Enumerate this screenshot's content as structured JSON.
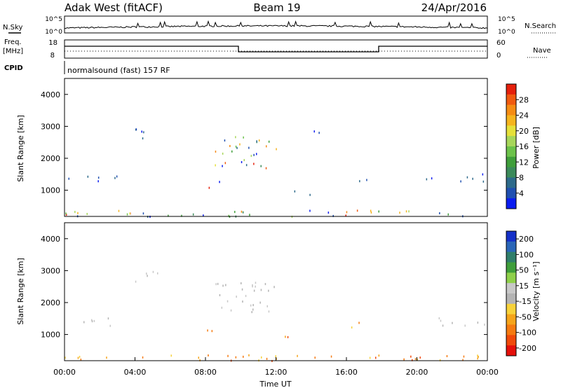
{
  "header": {
    "station": "Adak West (fitACF)",
    "beam": "Beam 19",
    "date": "24/Apr/2016"
  },
  "left_labels": {
    "nsky": "N.Sky",
    "freq": "Freq.",
    "mhz": "[MHz]",
    "cpid": "CPID"
  },
  "right_labels": {
    "nsearch": "N.Search",
    "nave": "Nave"
  },
  "top_panel": {
    "y_ticks_left": [
      "10^5",
      "10^0"
    ],
    "y_ticks_right": [
      "10^5",
      "10^0"
    ]
  },
  "freq_panel": {
    "y_ticks_left": [
      "18",
      "8"
    ],
    "y_ticks_right": [
      "60",
      "0"
    ]
  },
  "cpid_text": "normalsound (fast) 157 RF",
  "chart_data": [
    {
      "type": "heatmap",
      "name": "power",
      "ylabel": "Slant Range [km]",
      "x_ticks": [
        "00:00",
        "04:00",
        "08:00",
        "12:00",
        "16:00",
        "20:00",
        "00:00"
      ],
      "y_ticks": [
        "1000",
        "2000",
        "3000",
        "4000"
      ],
      "ylim": [
        180,
        4500
      ],
      "xlim_hours": [
        0,
        24
      ],
      "colorbar": {
        "label": "Power [dB]",
        "ticks": [
          "4",
          "8",
          "12",
          "16",
          "20",
          "24",
          "28"
        ],
        "range": [
          0,
          30
        ],
        "colors": [
          "#0a1cf0",
          "#1f4fb0",
          "#2d6a8a",
          "#3b8a5a",
          "#3f9e3a",
          "#6cc24a",
          "#a7d65a",
          "#e5e03a",
          "#f5b41e",
          "#f58c14",
          "#f05a10",
          "#e5200c"
        ]
      },
      "scatter_regions": [
        {
          "t": [
            0,
            3
          ],
          "r": [
            1300,
            1550
          ],
          "level": "low"
        },
        {
          "t": [
            4,
            5.5
          ],
          "r": [
            2600,
            3000
          ],
          "level": "low"
        },
        {
          "t": [
            8,
            9
          ],
          "r": [
            1100,
            1300
          ],
          "level": "mixed"
        },
        {
          "t": [
            8.5,
            12
          ],
          "r": [
            1700,
            2700
          ],
          "level": "mixed"
        },
        {
          "t": [
            12.5,
            14
          ],
          "r": [
            850,
            1000
          ],
          "level": "low"
        },
        {
          "t": [
            13.5,
            14.5
          ],
          "r": [
            2650,
            2900
          ],
          "level": "low"
        },
        {
          "t": [
            16,
            17.5
          ],
          "r": [
            1250,
            1400
          ],
          "level": "low"
        },
        {
          "t": [
            20.5,
            24
          ],
          "r": [
            1300,
            1550
          ],
          "level": "low"
        },
        {
          "t": [
            0,
            24
          ],
          "r": [
            200,
            400
          ],
          "level": "mixed"
        }
      ]
    },
    {
      "type": "heatmap",
      "name": "velocity",
      "ylabel": "Slant Range [km]",
      "xlabel": "Time UT",
      "x_ticks": [
        "00:00",
        "04:00",
        "08:00",
        "12:00",
        "16:00",
        "20:00",
        "00:00"
      ],
      "y_ticks": [
        "1000",
        "2000",
        "3000",
        "4000"
      ],
      "ylim": [
        180,
        4500
      ],
      "xlim_hours": [
        0,
        24
      ],
      "colorbar": {
        "label": "Velocity [m s⁻¹]",
        "ticks": [
          "200",
          "100",
          "50",
          "15",
          "-15",
          "-50",
          "-100",
          "-200"
        ],
        "colors": [
          "#1530c8",
          "#2a66b8",
          "#2f7e6a",
          "#3f9e3a",
          "#8fd04a",
          "#c8c8c8",
          "#b4b4b4",
          "#f7d23a",
          "#f5a41a",
          "#f57a10",
          "#f04a0a",
          "#e5100a"
        ]
      },
      "scatter_regions": [
        {
          "t": [
            0,
            3
          ],
          "r": [
            1300,
            1550
          ],
          "level": "gray"
        },
        {
          "t": [
            4,
            5.5
          ],
          "r": [
            2600,
            3000
          ],
          "level": "gray"
        },
        {
          "t": [
            8,
            9
          ],
          "r": [
            1100,
            1300
          ],
          "level": "warm"
        },
        {
          "t": [
            8.5,
            12
          ],
          "r": [
            1700,
            2700
          ],
          "level": "gray"
        },
        {
          "t": [
            12.5,
            14
          ],
          "r": [
            850,
            1000
          ],
          "level": "warm"
        },
        {
          "t": [
            16,
            17.5
          ],
          "r": [
            1250,
            1400
          ],
          "level": "warm"
        },
        {
          "t": [
            20.5,
            24
          ],
          "r": [
            1300,
            1550
          ],
          "level": "gray"
        },
        {
          "t": [
            0,
            24
          ],
          "r": [
            200,
            400
          ],
          "level": "warm"
        }
      ]
    }
  ]
}
